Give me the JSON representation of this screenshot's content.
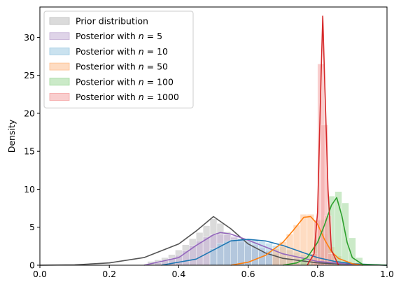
{
  "chart_data": {
    "type": "area",
    "title": "",
    "xlabel": "",
    "ylabel": "Density",
    "xlim": [
      0,
      1
    ],
    "ylim": [
      0,
      34
    ],
    "xticks": [
      "0.0",
      "0.2",
      "0.4",
      "0.6",
      "0.8",
      "1.0"
    ],
    "yticks": [
      "0",
      "5",
      "10",
      "15",
      "20",
      "25",
      "30"
    ],
    "legend_placement": "upper-left",
    "grid": false,
    "series": [
      {
        "name": "Prior distribution",
        "legend_prefix": "Prior distribution",
        "legend_n": "",
        "color": "#555555",
        "fill": "#bdbdbd",
        "kde": [
          [
            0.0,
            0.0
          ],
          [
            0.1,
            0.05
          ],
          [
            0.2,
            0.3
          ],
          [
            0.3,
            1.0
          ],
          [
            0.4,
            2.8
          ],
          [
            0.45,
            4.5
          ],
          [
            0.5,
            6.4
          ],
          [
            0.55,
            4.8
          ],
          [
            0.6,
            2.8
          ],
          [
            0.65,
            1.6
          ],
          [
            0.7,
            0.9
          ],
          [
            0.8,
            0.3
          ],
          [
            0.9,
            0.1
          ],
          [
            1.0,
            0.0
          ]
        ],
        "hist": [
          [
            0.32,
            0.5
          ],
          [
            0.34,
            0.7
          ],
          [
            0.36,
            1.0
          ],
          [
            0.38,
            1.4
          ],
          [
            0.4,
            2.0
          ],
          [
            0.42,
            2.7
          ],
          [
            0.44,
            3.5
          ],
          [
            0.46,
            4.3
          ],
          [
            0.48,
            5.2
          ],
          [
            0.5,
            6.1
          ],
          [
            0.52,
            5.5
          ],
          [
            0.54,
            4.4
          ],
          [
            0.56,
            3.6
          ],
          [
            0.58,
            3.0
          ],
          [
            0.6,
            2.5
          ],
          [
            0.62,
            2.1
          ],
          [
            0.64,
            1.7
          ],
          [
            0.66,
            1.4
          ],
          [
            0.68,
            1.1
          ],
          [
            0.7,
            0.9
          ],
          [
            0.72,
            0.7
          ],
          [
            0.74,
            0.6
          ],
          [
            0.76,
            0.5
          ]
        ]
      },
      {
        "name": "Posterior with n = 5",
        "legend_prefix": "Posterior with ",
        "legend_n": "5",
        "color": "#9467bd",
        "fill": "#c5b0d5",
        "kde": [
          [
            0.3,
            0.0
          ],
          [
            0.4,
            1.0
          ],
          [
            0.45,
            2.6
          ],
          [
            0.5,
            4.0
          ],
          [
            0.52,
            4.3
          ],
          [
            0.55,
            4.1
          ],
          [
            0.6,
            3.3
          ],
          [
            0.65,
            2.4
          ],
          [
            0.7,
            1.5
          ],
          [
            0.8,
            0.5
          ],
          [
            0.9,
            0.1
          ],
          [
            1.0,
            0.0
          ]
        ],
        "hist": [
          [
            0.34,
            0.3
          ],
          [
            0.36,
            0.6
          ],
          [
            0.38,
            0.9
          ],
          [
            0.4,
            1.3
          ],
          [
            0.42,
            1.9
          ],
          [
            0.44,
            2.6
          ],
          [
            0.46,
            3.2
          ],
          [
            0.48,
            3.7
          ],
          [
            0.5,
            4.0
          ],
          [
            0.52,
            4.1
          ],
          [
            0.54,
            4.0
          ],
          [
            0.56,
            3.8
          ],
          [
            0.58,
            3.5
          ],
          [
            0.6,
            3.1
          ],
          [
            0.62,
            2.7
          ],
          [
            0.64,
            2.3
          ],
          [
            0.66,
            1.9
          ],
          [
            0.68,
            1.5
          ]
        ]
      },
      {
        "name": "Posterior with n = 10",
        "legend_prefix": "Posterior with ",
        "legend_n": "10",
        "color": "#1f77b4",
        "fill": "#9ecae1",
        "kde": [
          [
            0.35,
            0.0
          ],
          [
            0.45,
            0.8
          ],
          [
            0.5,
            2.0
          ],
          [
            0.55,
            3.2
          ],
          [
            0.6,
            3.4
          ],
          [
            0.65,
            3.2
          ],
          [
            0.7,
            2.6
          ],
          [
            0.75,
            1.8
          ],
          [
            0.8,
            1.0
          ],
          [
            0.85,
            0.5
          ],
          [
            0.9,
            0.2
          ],
          [
            1.0,
            0.0
          ]
        ],
        "hist": [
          [
            0.5,
            2.2
          ],
          [
            0.52,
            2.9
          ],
          [
            0.54,
            3.2
          ],
          [
            0.56,
            3.4
          ],
          [
            0.58,
            3.5
          ],
          [
            0.6,
            3.4
          ],
          [
            0.62,
            3.3
          ],
          [
            0.64,
            3.1
          ],
          [
            0.66,
            2.9
          ],
          [
            0.68,
            2.6
          ],
          [
            0.7,
            2.4
          ],
          [
            0.72,
            2.0
          ],
          [
            0.74,
            1.7
          ],
          [
            0.76,
            1.4
          ]
        ]
      },
      {
        "name": "Posterior with n = 50",
        "legend_prefix": "Posterior with ",
        "legend_n": "50",
        "color": "#ff7f0e",
        "fill": "#fdbf8f",
        "kde": [
          [
            0.55,
            0.0
          ],
          [
            0.6,
            0.4
          ],
          [
            0.65,
            1.3
          ],
          [
            0.7,
            3.0
          ],
          [
            0.73,
            4.6
          ],
          [
            0.76,
            6.3
          ],
          [
            0.78,
            6.4
          ],
          [
            0.8,
            5.4
          ],
          [
            0.82,
            3.4
          ],
          [
            0.84,
            1.8
          ],
          [
            0.86,
            0.9
          ],
          [
            0.9,
            0.2
          ],
          [
            0.93,
            0.0
          ]
        ],
        "hist": [
          [
            0.68,
            2.2
          ],
          [
            0.7,
            3.1
          ],
          [
            0.72,
            4.1
          ],
          [
            0.74,
            5.3
          ],
          [
            0.76,
            6.7
          ],
          [
            0.78,
            6.7
          ],
          [
            0.8,
            5.8
          ],
          [
            0.82,
            4.1
          ],
          [
            0.84,
            2.4
          ],
          [
            0.86,
            1.2
          ]
        ]
      },
      {
        "name": "Posterior with n = 100",
        "legend_prefix": "Posterior with ",
        "legend_n": "100",
        "color": "#2ca02c",
        "fill": "#a1d99b",
        "kde": [
          [
            0.7,
            0.0
          ],
          [
            0.74,
            0.3
          ],
          [
            0.77,
            1.0
          ],
          [
            0.8,
            3.0
          ],
          [
            0.82,
            5.3
          ],
          [
            0.84,
            7.9
          ],
          [
            0.855,
            8.9
          ],
          [
            0.87,
            6.5
          ],
          [
            0.885,
            3.0
          ],
          [
            0.9,
            1.0
          ],
          [
            0.93,
            0.1
          ],
          [
            1.0,
            0.0
          ]
        ],
        "hist": [
          [
            0.76,
            0.8
          ],
          [
            0.78,
            1.5
          ],
          [
            0.8,
            3.4
          ],
          [
            0.82,
            6.0
          ],
          [
            0.84,
            9.1
          ],
          [
            0.86,
            9.7
          ],
          [
            0.88,
            8.2
          ],
          [
            0.9,
            3.6
          ],
          [
            0.92,
            1.0
          ]
        ]
      },
      {
        "name": "Posterior with n = 1000",
        "legend_prefix": "Posterior with ",
        "legend_n": "1000",
        "color": "#d62728",
        "fill": "#f4a6a6",
        "kde": [
          [
            0.77,
            0.0
          ],
          [
            0.79,
            1.5
          ],
          [
            0.8,
            7.0
          ],
          [
            0.81,
            25.0
          ],
          [
            0.815,
            32.8
          ],
          [
            0.82,
            25.0
          ],
          [
            0.83,
            10.0
          ],
          [
            0.84,
            2.0
          ],
          [
            0.86,
            0.0
          ]
        ],
        "hist": [
          [
            0.79,
            1.5
          ],
          [
            0.8,
            6.0
          ],
          [
            0.81,
            26.5
          ],
          [
            0.82,
            18.5
          ],
          [
            0.83,
            6.5
          ],
          [
            0.84,
            1.5
          ]
        ]
      }
    ]
  }
}
